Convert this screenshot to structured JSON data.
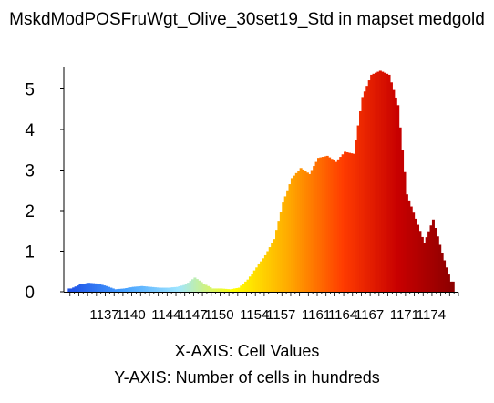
{
  "chart_data": {
    "type": "bar",
    "title": "MskdModPOSFruWgt_Olive_30set19_Std in mapset medgold",
    "xlabel": "X-AXIS: Cell Values",
    "ylabel": "Y-AXIS: Number of cells in hundreds",
    "ylim": [
      0,
      5.5
    ],
    "yticks": [
      "0",
      "1",
      "2",
      "3",
      "4",
      "5"
    ],
    "xticks": [
      "1137",
      "1140",
      "1144",
      "1147",
      "1150",
      "1154",
      "1157",
      "1161",
      "1164",
      "1167",
      "1171",
      "1174"
    ],
    "grid": false,
    "legend": "none",
    "color_ramp": [
      "#1e50e6",
      "#46a0ff",
      "#a0e6ff",
      "#ffff00",
      "#ffaa00",
      "#ff3c00",
      "#c80000",
      "#8c0000"
    ],
    "x": [
      1133,
      1134,
      1135,
      1136,
      1137,
      1138,
      1139,
      1140,
      1141,
      1142,
      1143,
      1144,
      1145,
      1146,
      1147,
      1148,
      1149,
      1150,
      1151,
      1152,
      1153,
      1154,
      1155,
      1156,
      1157,
      1158,
      1159,
      1160,
      1161,
      1162,
      1163,
      1164,
      1165,
      1166,
      1167,
      1168,
      1169,
      1170,
      1171,
      1172,
      1173,
      1174,
      1175,
      1176
    ],
    "values": [
      0.08,
      0.18,
      0.22,
      0.2,
      0.14,
      0.06,
      0.08,
      0.12,
      0.14,
      0.12,
      0.1,
      0.1,
      0.12,
      0.18,
      0.35,
      0.2,
      0.08,
      0.08,
      0.06,
      0.1,
      0.3,
      0.6,
      0.9,
      1.3,
      2.2,
      2.8,
      3.05,
      2.9,
      3.3,
      3.35,
      3.2,
      3.45,
      3.4,
      4.8,
      5.35,
      5.45,
      5.35,
      4.6,
      2.4,
      1.8,
      1.2,
      1.78,
      0.95,
      0.25
    ]
  }
}
